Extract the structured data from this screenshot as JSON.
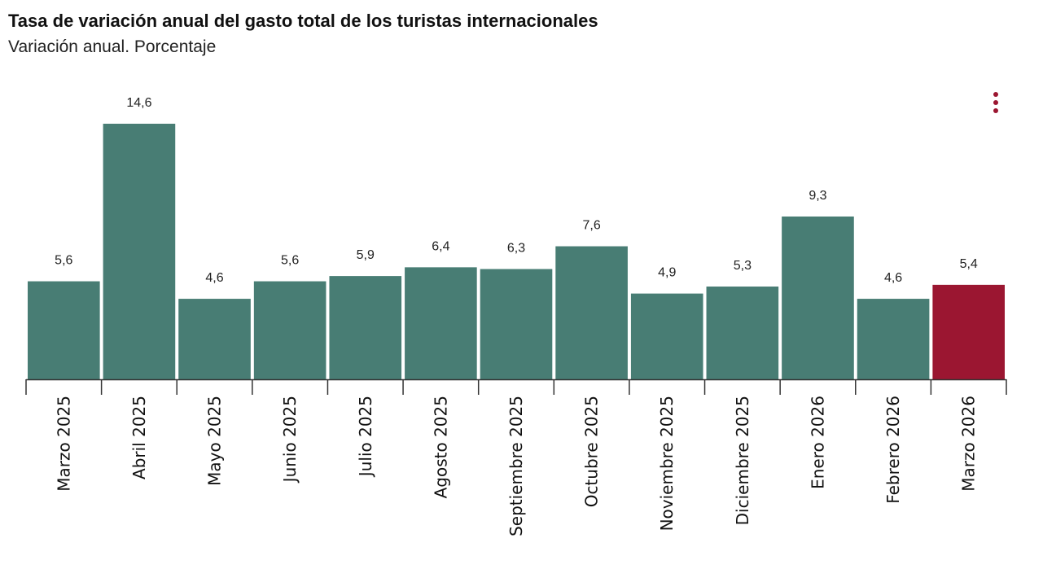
{
  "chart_data": {
    "type": "bar",
    "title": "Tasa de variación anual del gasto total de los turistas internacionales",
    "subtitle": "Variación anual. Porcentaje",
    "categories": [
      "Marzo 2025",
      "Abril 2025",
      "Mayo 2025",
      "Junio 2025",
      "Julio 2025",
      "Agosto 2025",
      "Septiembre 2025",
      "Octubre 2025",
      "Noviembre 2025",
      "Diciembre 2025",
      "Enero 2026",
      "Febrero 2026",
      "Marzo 2026"
    ],
    "values": [
      5.6,
      14.6,
      4.6,
      5.6,
      5.9,
      6.4,
      6.3,
      7.6,
      4.9,
      5.3,
      9.3,
      4.6,
      5.4
    ],
    "value_labels": [
      "5,6",
      "14,6",
      "4,6",
      "5,6",
      "5,9",
      "6,4",
      "6,3",
      "7,6",
      "4,9",
      "5,3",
      "9,3",
      "4,6",
      "5,4"
    ],
    "ylim": [
      0,
      14.6
    ],
    "grid": false,
    "colors": {
      "default": "#487d74",
      "highlight": "#9b1631",
      "axis": "#333333"
    },
    "highlight_index": 12
  },
  "menu_icon": "more-vertical-icon"
}
